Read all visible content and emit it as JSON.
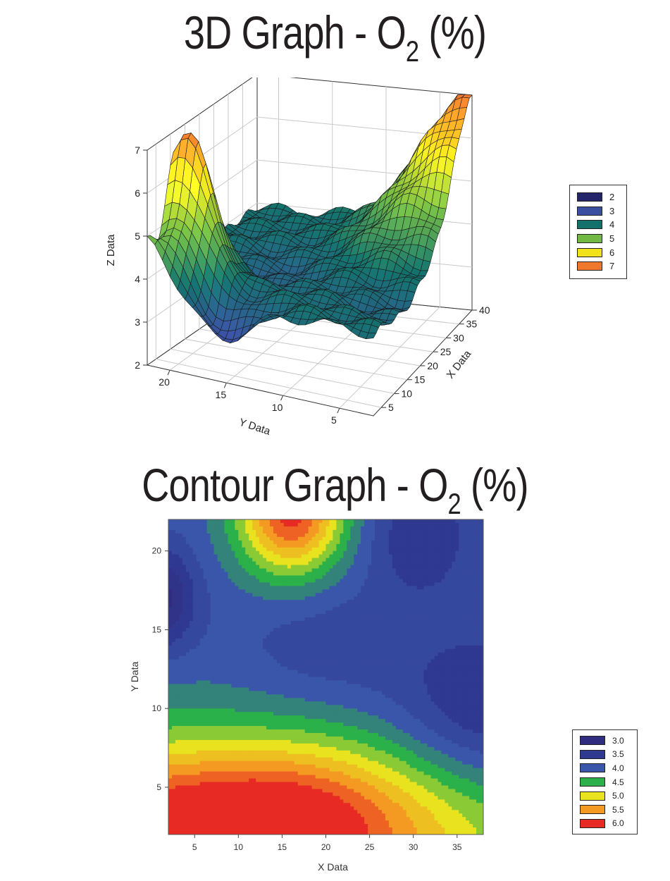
{
  "surface_section": {
    "title_main": "3D Graph - O",
    "title_sub": "2",
    "title_tail": " (%)"
  },
  "contour_section": {
    "title_main": "Contour Graph - O",
    "title_sub": "2",
    "title_tail": " (%)"
  },
  "chart_data": [
    {
      "type": "surface3d",
      "zlabel": "Z Data",
      "xlabel": "X Data",
      "ylabel": "Y Data",
      "z_ticks": [
        "2",
        "3",
        "4",
        "5",
        "6",
        "7"
      ],
      "x_ticks": [
        "5",
        "10",
        "15",
        "20",
        "25",
        "30",
        "35",
        "40"
      ],
      "y_ticks": [
        "20",
        "15",
        "10",
        "5"
      ],
      "zlim": [
        2,
        7
      ],
      "xlim": [
        2,
        40
      ],
      "ylim": [
        2,
        22
      ],
      "legend": {
        "placement": "right",
        "entries": [
          {
            "label": "2",
            "color": "#24246b"
          },
          {
            "label": "3",
            "color": "#3a4fa0"
          },
          {
            "label": "4",
            "color": "#13706a"
          },
          {
            "label": "5",
            "color": "#72b844"
          },
          {
            "label": "6",
            "color": "#f2e21b"
          },
          {
            "label": "7",
            "color": "#f0782c"
          }
        ]
      },
      "surface_peaks": [
        {
          "x": 2,
          "y": 22,
          "z": 4.7
        },
        {
          "x": 12,
          "y": 21,
          "z": 6.9
        },
        {
          "x": 3,
          "y": 17,
          "z": 2.9
        },
        {
          "x": 20,
          "y": 16,
          "z": 3.6
        },
        {
          "x": 38,
          "y": 3,
          "z": 6.9
        },
        {
          "x": 14,
          "y": 4,
          "z": 3.8
        }
      ]
    },
    {
      "type": "heatmap",
      "xlabel": "X Data",
      "ylabel": "Y Data",
      "x_ticks": [
        "5",
        "10",
        "15",
        "20",
        "25",
        "30",
        "35"
      ],
      "y_ticks": [
        "5",
        "10",
        "15",
        "20"
      ],
      "xlim": [
        2,
        38
      ],
      "ylim": [
        2,
        22
      ],
      "legend": {
        "placement": "right",
        "entries": [
          {
            "label": "3.0",
            "color": "#302c80"
          },
          {
            "label": "3.5",
            "color": "#2f3990"
          },
          {
            "label": "4.0",
            "color": "#3a56aa"
          },
          {
            "label": "4.5",
            "color": "#2bb04a"
          },
          {
            "label": "5.0",
            "color": "#e8e31e"
          },
          {
            "label": "5.5",
            "color": "#f49a22"
          },
          {
            "label": "6.0",
            "color": "#e82a24"
          }
        ]
      },
      "field_features": [
        {
          "x": 2,
          "y": 17,
          "value": 3.0
        },
        {
          "x": 30,
          "y": 21,
          "value": 3.3
        },
        {
          "x": 16,
          "y": 22,
          "value": 5.6
        },
        {
          "x": 2,
          "y": 2,
          "value": 6.1
        },
        {
          "x": 18,
          "y": 6,
          "value": 5.2
        },
        {
          "x": 38,
          "y": 10,
          "value": 4.0
        }
      ]
    }
  ]
}
